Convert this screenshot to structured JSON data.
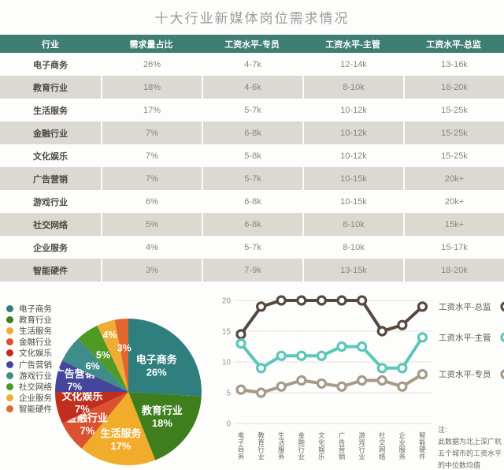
{
  "title": "十大行业新媒体岗位需求情况",
  "table": {
    "headers": [
      "行业",
      "需求量占比",
      "工资水平-专员",
      "工资水平-主管",
      "工资水平-总监"
    ],
    "rows": [
      [
        "电子商务",
        "26%",
        "4-7k",
        "12-14k",
        "13-16k"
      ],
      [
        "教育行业",
        "18%",
        "4-6k",
        "8-10k",
        "18-20k"
      ],
      [
        "生活服务",
        "17%",
        "5-7k",
        "10-12k",
        "15-25k"
      ],
      [
        "金融行业",
        "7%",
        "6-8k",
        "10-12k",
        "15-25k"
      ],
      [
        "文化娱乐",
        "7%",
        "5-8k",
        "10-12k",
        "15-25k"
      ],
      [
        "广告营销",
        "7%",
        "5-7k",
        "10-15k",
        "20k+"
      ],
      [
        "游戏行业",
        "6%",
        "6-8k",
        "10-15k",
        "20k+"
      ],
      [
        "社交网络",
        "5%",
        "6-8k",
        "8-10k",
        "15k+"
      ],
      [
        "企业服务",
        "4%",
        "5-7k",
        "8-10k",
        "15-17k"
      ],
      [
        "智能硬件",
        "3%",
        "7-9k",
        "13-15k",
        "18-20k"
      ]
    ]
  },
  "chart_data": [
    {
      "type": "pie",
      "labels": [
        "电子商务",
        "教育行业",
        "生活服务",
        "金融行业",
        "文化娱乐",
        "广告营销",
        "游戏行业",
        "社交网络",
        "企业服务",
        "智能硬件"
      ],
      "values": [
        26,
        18,
        17,
        7,
        7,
        7,
        6,
        5,
        4,
        3
      ],
      "unit": "%",
      "colors": [
        "#2F7F7F",
        "#3E7E1D",
        "#F0AC2A",
        "#DC5231",
        "#C02F1D",
        "#45459C",
        "#3E8D89",
        "#4E9A23",
        "#EDAE33",
        "#E3652F"
      ],
      "legend_position": "left"
    },
    {
      "type": "line",
      "x": [
        "电子商务",
        "教育行业",
        "生活服务",
        "金融行业",
        "文化娱乐",
        "广告营销",
        "游戏行业",
        "社交网络",
        "企业服务",
        "智能硬件"
      ],
      "series": [
        {
          "name": "工资水平-总监",
          "color": "#57493F",
          "values": [
            14.5,
            19,
            20,
            20,
            20,
            20,
            20,
            15,
            16,
            19
          ]
        },
        {
          "name": "工资水平-主管",
          "color": "#5CC6BA",
          "values": [
            13,
            9,
            11,
            11,
            11,
            12.5,
            12.5,
            9,
            9,
            14
          ]
        },
        {
          "name": "工资水平-专员",
          "color": "#A89A88",
          "values": [
            5.5,
            5,
            6,
            7,
            6.5,
            6,
            7,
            7,
            6,
            8
          ]
        }
      ],
      "ylim": [
        0,
        20
      ],
      "yticks": [
        0,
        5,
        10,
        15,
        20
      ],
      "grid": true,
      "legend_position": "right",
      "unit": "k"
    }
  ],
  "note": {
    "label": "注:",
    "lines": [
      "此数据为北上深广杭",
      "五个城市的工资水平",
      "的中位数均值"
    ]
  },
  "colors": {
    "table_header_bg": "#3E7E73",
    "table_row_stripe": "#DCD8D2",
    "title_text": "#9B9B9B"
  }
}
